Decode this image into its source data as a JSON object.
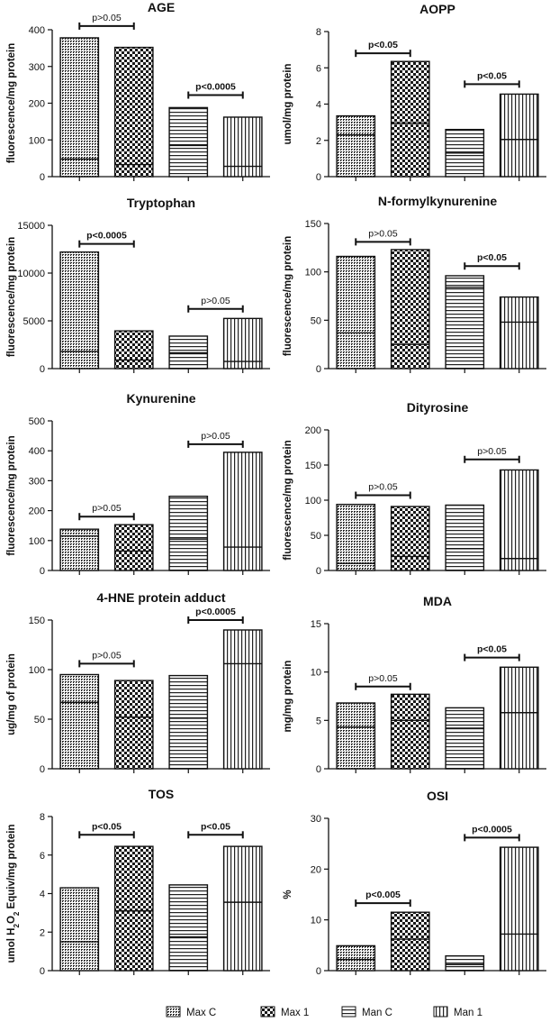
{
  "legend": [
    {
      "key": "maxc",
      "label": "Max C"
    },
    {
      "key": "max1",
      "label": "Max 1"
    },
    {
      "key": "manc",
      "label": "Man C"
    },
    {
      "key": "man1",
      "label": "Man 1"
    }
  ],
  "chart_data": [
    {
      "type": "bar",
      "title": "AGE",
      "ylabel": "fluorescence/mg protein",
      "ylim": [
        0,
        400
      ],
      "ticks": [
        0,
        100,
        200,
        300,
        400
      ],
      "categories": [
        "Max C",
        "Max 1",
        "Man C",
        "Man 1"
      ],
      "series": [
        {
          "name": "mean",
          "values": [
            378,
            352,
            188,
            162
          ]
        }
      ],
      "inner_lines": [
        48,
        33,
        85,
        28
      ],
      "significance": [
        {
          "from": 0,
          "to": 1,
          "label": "p>0.05",
          "bold": false,
          "y": 410
        },
        {
          "from": 2,
          "to": 3,
          "label": "p<0.0005",
          "bold": true,
          "y": 222
        }
      ]
    },
    {
      "type": "bar",
      "title": "AOPP",
      "ylabel": "umol/mg protein",
      "ylim": [
        0,
        8
      ],
      "ticks": [
        0,
        2,
        4,
        6,
        8
      ],
      "categories": [
        "Max C",
        "Max 1",
        "Man C",
        "Man 1"
      ],
      "series": [
        {
          "name": "mean",
          "values": [
            3.35,
            6.35,
            2.6,
            4.55
          ]
        }
      ],
      "inner_lines": [
        2.3,
        2.95,
        1.3,
        2.05
      ],
      "significance": [
        {
          "from": 0,
          "to": 1,
          "label": "p<0.05",
          "bold": true,
          "y": 6.8
        },
        {
          "from": 2,
          "to": 3,
          "label": "p<0.05",
          "bold": true,
          "y": 5.1
        }
      ]
    },
    {
      "type": "bar",
      "title": "Tryptophan",
      "ylabel": "fluorescence/mg protein",
      "ylim": [
        0,
        15000
      ],
      "ticks": [
        0,
        5000,
        10000,
        15000
      ],
      "categories": [
        "Max C",
        "Max 1",
        "Man C",
        "Man 1"
      ],
      "series": [
        {
          "name": "mean",
          "values": [
            12200,
            3950,
            3400,
            5250
          ]
        }
      ],
      "inner_lines": [
        1800,
        900,
        1650,
        750
      ],
      "significance": [
        {
          "from": 0,
          "to": 1,
          "label": "p<0.0005",
          "bold": true,
          "y": 13050
        },
        {
          "from": 2,
          "to": 3,
          "label": "p>0.05",
          "bold": false,
          "y": 6250
        }
      ]
    },
    {
      "type": "bar",
      "title": "N-formylkynurenine",
      "ylabel": "fluorescence/mg protein",
      "ylim": [
        0,
        150
      ],
      "ticks": [
        0,
        50,
        100,
        150
      ],
      "categories": [
        "Max C",
        "Max 1",
        "Man C",
        "Man 1"
      ],
      "series": [
        {
          "name": "mean",
          "values": [
            116,
            123,
            96,
            74
          ]
        }
      ],
      "inner_lines": [
        37,
        25,
        84,
        48
      ],
      "significance": [
        {
          "from": 0,
          "to": 1,
          "label": "p>0.05",
          "bold": false,
          "y": 131
        },
        {
          "from": 2,
          "to": 3,
          "label": "p<0.05",
          "bold": true,
          "y": 106
        }
      ]
    },
    {
      "type": "bar",
      "title": "Kynurenine",
      "ylabel": "fluorescence/mg protein",
      "ylim": [
        0,
        500
      ],
      "ticks": [
        0,
        100,
        200,
        300,
        400,
        500
      ],
      "categories": [
        "Max C",
        "Max 1",
        "Man C",
        "Man 1"
      ],
      "series": [
        {
          "name": "mean",
          "values": [
            138,
            153,
            248,
            395
          ]
        }
      ],
      "inner_lines": [
        115,
        65,
        105,
        78
      ],
      "significance": [
        {
          "from": 0,
          "to": 1,
          "label": "p>0.05",
          "bold": false,
          "y": 180
        },
        {
          "from": 2,
          "to": 3,
          "label": "p>0.05",
          "bold": false,
          "y": 422
        }
      ]
    },
    {
      "type": "bar",
      "title": "Dityrosine",
      "ylabel": "fluorescence/mg protein",
      "ylim": [
        0,
        200
      ],
      "ticks": [
        0,
        50,
        100,
        150,
        200
      ],
      "categories": [
        "Max C",
        "Max 1",
        "Man C",
        "Man 1"
      ],
      "series": [
        {
          "name": "mean",
          "values": [
            94,
            91,
            93,
            143
          ]
        }
      ],
      "inner_lines": [
        10,
        20,
        31,
        17
      ],
      "significance": [
        {
          "from": 0,
          "to": 1,
          "label": "p>0.05",
          "bold": false,
          "y": 107
        },
        {
          "from": 2,
          "to": 3,
          "label": "p>0.05",
          "bold": false,
          "y": 158
        }
      ]
    },
    {
      "type": "bar",
      "title": "4-HNE protein adduct",
      "ylabel": "ug/mg of protein",
      "ylim": [
        0,
        150
      ],
      "ticks": [
        0,
        50,
        100,
        150
      ],
      "categories": [
        "Max C",
        "Max 1",
        "Man C",
        "Man 1"
      ],
      "series": [
        {
          "name": "mean",
          "values": [
            95,
            89,
            94,
            140
          ]
        }
      ],
      "inner_lines": [
        67,
        52,
        51,
        106
      ],
      "significance": [
        {
          "from": 0,
          "to": 1,
          "label": "p>0.05",
          "bold": false,
          "y": 106
        },
        {
          "from": 2,
          "to": 3,
          "label": "p<0.0005",
          "bold": true,
          "y": 150
        }
      ]
    },
    {
      "type": "bar",
      "title": "MDA",
      "ylabel": "mg/mg protein",
      "ylim": [
        0,
        15
      ],
      "ticks": [
        0,
        5,
        10,
        15
      ],
      "categories": [
        "Max C",
        "Max 1",
        "Man C",
        "Man 1"
      ],
      "series": [
        {
          "name": "mean",
          "values": [
            6.8,
            7.7,
            6.3,
            10.5
          ]
        }
      ],
      "inner_lines": [
        4.3,
        5.0,
        4.2,
        5.8
      ],
      "significance": [
        {
          "from": 0,
          "to": 1,
          "label": "p>0.05",
          "bold": false,
          "y": 8.5
        },
        {
          "from": 2,
          "to": 3,
          "label": "p<0.05",
          "bold": true,
          "y": 11.5
        }
      ]
    },
    {
      "type": "bar",
      "title": "TOS",
      "ylabel": "umol H2O2 Equiv/mg protein",
      "ylim": [
        0,
        8
      ],
      "ticks": [
        0,
        2,
        4,
        6,
        8
      ],
      "categories": [
        "Max C",
        "Max 1",
        "Man C",
        "Man 1"
      ],
      "series": [
        {
          "name": "mean",
          "values": [
            4.3,
            6.45,
            4.45,
            6.45
          ]
        }
      ],
      "inner_lines": [
        1.5,
        3.1,
        1.75,
        3.55
      ],
      "significance": [
        {
          "from": 0,
          "to": 1,
          "label": "p<0.05",
          "bold": true,
          "y": 7.05
        },
        {
          "from": 2,
          "to": 3,
          "label": "p<0.05",
          "bold": true,
          "y": 7.05
        }
      ]
    },
    {
      "type": "bar",
      "title": "OSI",
      "ylabel": "%",
      "ylim": [
        0,
        30
      ],
      "ticks": [
        0,
        10,
        20,
        30
      ],
      "categories": [
        "Max C",
        "Max 1",
        "Man C",
        "Man 1"
      ],
      "series": [
        {
          "name": "mean",
          "values": [
            4.9,
            11.5,
            2.9,
            24.3
          ]
        }
      ],
      "inner_lines": [
        2.2,
        6.2,
        1.2,
        7.2
      ],
      "significance": [
        {
          "from": 0,
          "to": 1,
          "label": "p<0.005",
          "bold": true,
          "y": 13.3
        },
        {
          "from": 2,
          "to": 3,
          "label": "p<0.0005",
          "bold": true,
          "y": 26.2
        }
      ]
    }
  ]
}
